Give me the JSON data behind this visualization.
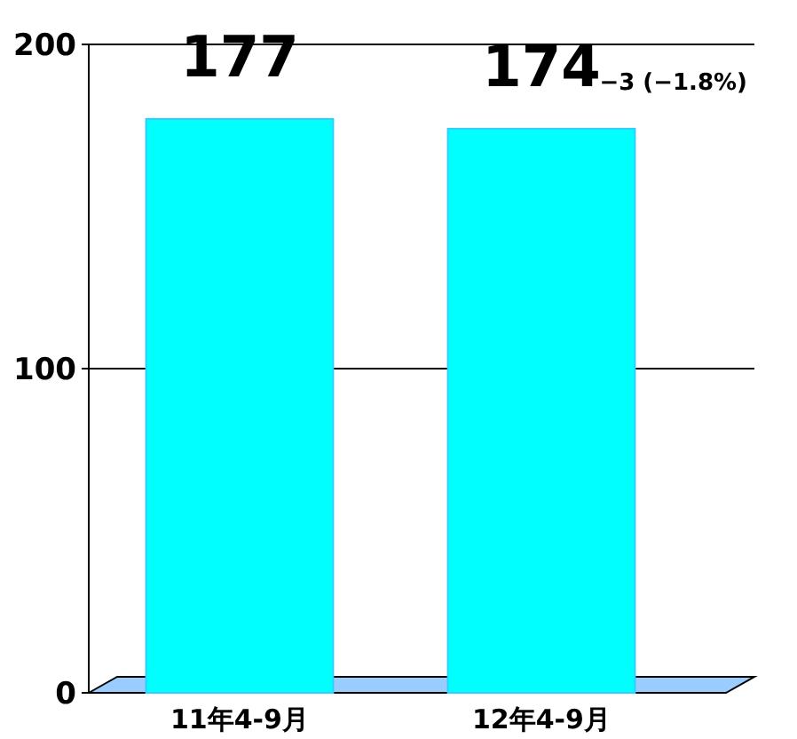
{
  "chart_data": {
    "type": "bar",
    "categories": [
      "11年4-9月",
      "12年4-9月"
    ],
    "values": [
      177,
      174
    ],
    "color": "#00ffff",
    "ylim": [
      0,
      200
    ],
    "yticks": [
      0,
      100,
      200
    ],
    "grid": "y",
    "data_labels": true,
    "annotations": [
      {
        "text": "−3 (−1.8%)",
        "x": "12年4-9月",
        "y": 174
      }
    ]
  }
}
